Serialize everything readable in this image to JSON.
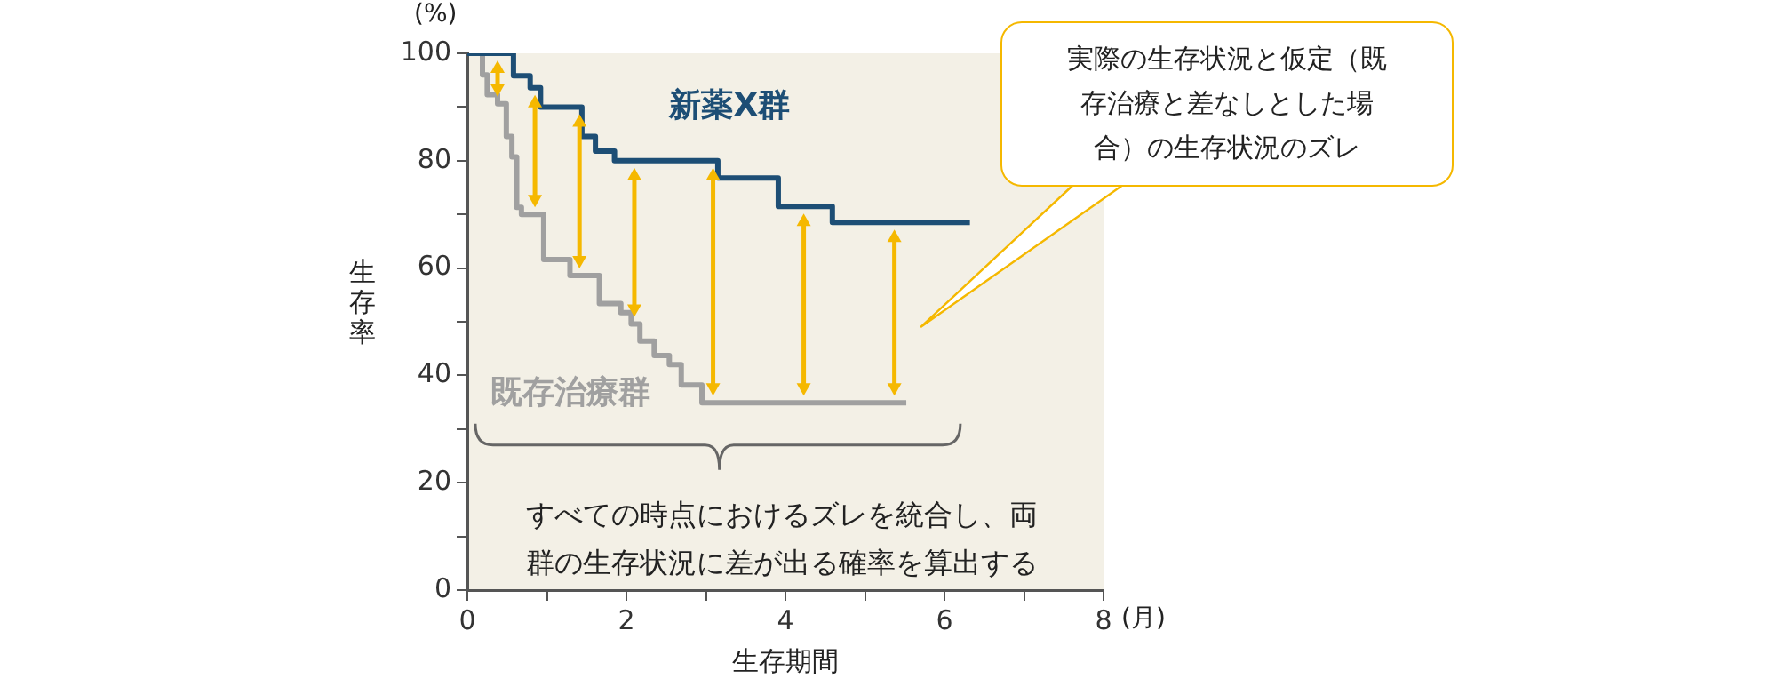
{
  "chart_data": {
    "type": "step",
    "xlabel": "生存期間",
    "ylabel": "生存率",
    "xlim": [
      0,
      8
    ],
    "ylim": [
      0,
      100
    ],
    "xticks": [
      0,
      {
        "value": 1,
        "label": null
      },
      2,
      {
        "value": 3,
        "label": null
      },
      4,
      {
        "value": 5,
        "label": null
      },
      6,
      {
        "value": 7,
        "label": null
      },
      8
    ],
    "yticks": [
      0,
      {
        "value": 10,
        "label": null
      },
      20,
      {
        "value": 30,
        "label": null
      },
      40,
      {
        "value": 50,
        "label": null
      },
      60,
      {
        "value": 70,
        "label": null
      },
      80,
      {
        "value": 90,
        "label": null
      },
      100
    ],
    "series": [
      {
        "name": "新薬X群",
        "color": "#1d4e75",
        "x": [
          0,
          0.58,
          0.79,
          0.92,
          1.44,
          1.61,
          1.85,
          3.15,
          3.91,
          4.59,
          6.32
        ],
        "values": [
          100,
          95.8,
          93.6,
          90,
          84.5,
          81.8,
          80,
          76.8,
          71.5,
          68.5,
          68.5
        ]
      },
      {
        "name": "既存治療群",
        "color": "#a0a0a0",
        "x": [
          0,
          0.19,
          0.25,
          0.38,
          0.49,
          0.56,
          0.62,
          0.68,
          0.96,
          1.29,
          1.66,
          1.93,
          2.06,
          2.17,
          2.35,
          2.54,
          2.69,
          2.95,
          3.17,
          5.52
        ],
        "values": [
          100,
          96,
          92.3,
          90.6,
          84.5,
          80.7,
          71.3,
          70,
          61.6,
          58.6,
          53.4,
          51.7,
          49.6,
          46.4,
          43.7,
          42,
          38.2,
          34.9,
          34.9,
          34.9
        ]
      }
    ],
    "annotations": [
      "(%)",
      "(月)",
      "実際の生存状況と仮定（既存治療と差なしとした場合）の生存状況のズレ",
      "すべての時点におけるズレを統合し、両群の生存状況に差が出る確率を算出する"
    ],
    "grid": false,
    "legend": false
  }
}
